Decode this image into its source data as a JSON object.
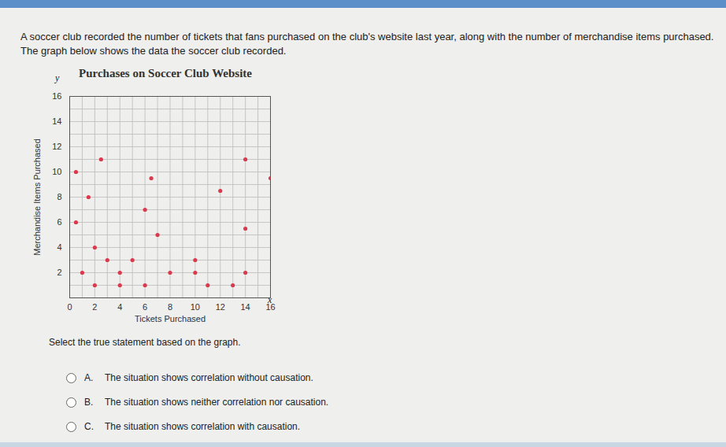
{
  "question": "A soccer club recorded the number of tickets that fans purchased on the club's website last year, along with the number of merchandise items purchased. The graph below shows the data the soccer club recorded.",
  "chart_data": {
    "type": "scatter",
    "title": "Purchases on Soccer Club Website",
    "x_label": "Tickets Purchased",
    "y_label": "Merchandise Items Purchased",
    "axis_symbols": {
      "x": "x",
      "y": "y"
    },
    "x": [
      0.5,
      2.5,
      1.5,
      0.5,
      2,
      3,
      1,
      2,
      4,
      4,
      5,
      6,
      6,
      7,
      6.5,
      8,
      10,
      10,
      11,
      12,
      13,
      14,
      14,
      14,
      16
    ],
    "values": [
      10,
      11,
      8,
      6,
      4,
      3,
      2,
      1,
      2,
      1,
      3,
      1,
      7,
      5,
      9.5,
      2,
      3,
      2,
      1,
      8.5,
      1,
      11,
      5.5,
      2,
      9.5
    ],
    "color": "#d93a4e",
    "marker": "circle",
    "xlim": [
      0,
      16
    ],
    "ylim": [
      0,
      16
    ],
    "xticks": [
      0,
      2,
      4,
      6,
      8,
      10,
      12,
      14,
      16
    ],
    "yticks": [
      2,
      4,
      6,
      8,
      10,
      12,
      14,
      16
    ],
    "grid": true
  },
  "prompt": "Select the true statement based on the graph.",
  "options": [
    {
      "letter": "A.",
      "text": "The situation shows correlation without causation."
    },
    {
      "letter": "B.",
      "text": "The situation shows neither correlation nor causation."
    },
    {
      "letter": "C.",
      "text": "The situation shows correlation with causation."
    }
  ]
}
